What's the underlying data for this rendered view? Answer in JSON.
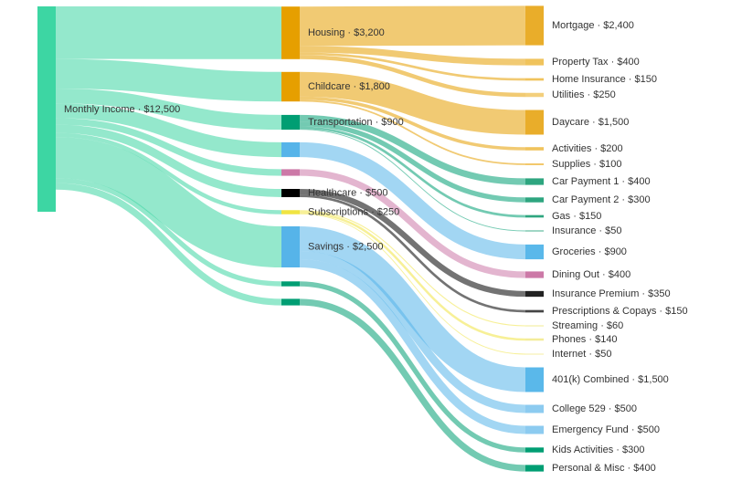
{
  "chart_data": {
    "type": "sankey",
    "nodes": {
      "labels": [
        "Monthly Income · $12,500",
        "Housing · $3,200",
        "Childcare · $1,800",
        "Transportation · $900",
        null,
        null,
        "Healthcare · $500",
        "Subscriptions · $250",
        "Savings · $2,500",
        null,
        null,
        "Mortgage · $2,400",
        "Property Tax · $400",
        "Home Insurance · $150",
        "Utilities · $250",
        "Daycare · $1,500",
        "Activities · $200",
        "Supplies · $100",
        "Car Payment 1 · $400",
        "Car Payment 2 · $300",
        "Gas · $150",
        "Insurance · $50",
        "Groceries · $900",
        "Dining Out · $400",
        "Insurance Premium · $350",
        "Prescriptions & Copays · $150",
        "Streaming · $60",
        "Phones · $140",
        "Internet · $50",
        "401(k) Combined · $1,500",
        "College 529 · $500",
        "Emergency Fund · $500",
        "Kids Activities · $300",
        "Personal & Misc · $400"
      ],
      "values": [
        12500,
        3200,
        1800,
        900,
        900,
        400,
        500,
        250,
        2500,
        300,
        400,
        2400,
        400,
        150,
        250,
        1500,
        200,
        100,
        400,
        300,
        150,
        50,
        900,
        400,
        350,
        150,
        60,
        140,
        50,
        1500,
        500,
        500,
        300,
        400
      ],
      "colors": [
        "#3dd6a3",
        "#e69f00",
        "#e69f00",
        "#009e73",
        "#56b4e9",
        "#cc79a7",
        "#000000",
        "#f0e442",
        "#56b4e9",
        "#009e73",
        "#009e73",
        "#e9ad2a",
        "#f0c35c",
        "#f0c35c",
        "#f3cf7c",
        "#e9ad2a",
        "#f0c35c",
        "#f0c35c",
        "#2ea57f",
        "#2ea57f",
        "#2ea57f",
        "#2ea57f",
        "#5ab8ea",
        "#cc79a7",
        "#222222",
        "#444444",
        "#f3ec9a",
        "#f3ec9a",
        "#f3ec9a",
        "#5ab8ea",
        "#8ccbf0",
        "#8ccbf0",
        "#009e73",
        "#009e73"
      ]
    },
    "links": [
      {
        "source": 0,
        "target": 1,
        "value": 3200
      },
      {
        "source": 0,
        "target": 2,
        "value": 1800
      },
      {
        "source": 0,
        "target": 3,
        "value": 900
      },
      {
        "source": 0,
        "target": 4,
        "value": 900
      },
      {
        "source": 0,
        "target": 5,
        "value": 400
      },
      {
        "source": 0,
        "target": 6,
        "value": 500
      },
      {
        "source": 0,
        "target": 7,
        "value": 250
      },
      {
        "source": 0,
        "target": 8,
        "value": 2500
      },
      {
        "source": 0,
        "target": 9,
        "value": 300
      },
      {
        "source": 0,
        "target": 10,
        "value": 400
      },
      {
        "source": 1,
        "target": 11,
        "value": 2400
      },
      {
        "source": 1,
        "target": 12,
        "value": 400
      },
      {
        "source": 1,
        "target": 13,
        "value": 150
      },
      {
        "source": 1,
        "target": 14,
        "value": 250
      },
      {
        "source": 2,
        "target": 15,
        "value": 1500
      },
      {
        "source": 2,
        "target": 16,
        "value": 200
      },
      {
        "source": 2,
        "target": 17,
        "value": 100
      },
      {
        "source": 3,
        "target": 18,
        "value": 400
      },
      {
        "source": 3,
        "target": 19,
        "value": 300
      },
      {
        "source": 3,
        "target": 20,
        "value": 150
      },
      {
        "source": 3,
        "target": 21,
        "value": 50
      },
      {
        "source": 4,
        "target": 22,
        "value": 900
      },
      {
        "source": 5,
        "target": 23,
        "value": 400
      },
      {
        "source": 6,
        "target": 24,
        "value": 350
      },
      {
        "source": 6,
        "target": 25,
        "value": 150
      },
      {
        "source": 7,
        "target": 26,
        "value": 60
      },
      {
        "source": 7,
        "target": 27,
        "value": 140
      },
      {
        "source": 7,
        "target": 28,
        "value": 50
      },
      {
        "source": 8,
        "target": 29,
        "value": 1500
      },
      {
        "source": 8,
        "target": 30,
        "value": 500
      },
      {
        "source": 8,
        "target": 31,
        "value": 500
      },
      {
        "source": 9,
        "target": 32,
        "value": 300
      },
      {
        "source": 10,
        "target": 33,
        "value": 400
      }
    ]
  }
}
